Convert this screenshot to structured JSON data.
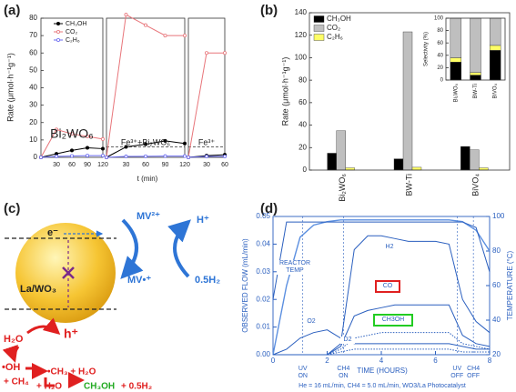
{
  "panel_labels": [
    "(a)",
    "(b)",
    "(c)",
    "(d)"
  ],
  "chart_data": [
    {
      "type": "line",
      "ylabel": "Rate (μmol·h⁻¹g⁻¹)",
      "xlabel": "t (min)",
      "ylim": [
        0,
        80
      ],
      "yticks": [
        0,
        10,
        20,
        30,
        40,
        50,
        60,
        70,
        80
      ],
      "subplots": [
        {
          "label": "Bi₂WO₆",
          "xlim": [
            0,
            120
          ],
          "xticks": [
            30,
            60,
            90,
            120
          ],
          "x": [
            0,
            30,
            60,
            90,
            120
          ],
          "series": [
            {
              "name": "CH₃OH",
              "color": "#000000",
              "values": [
                0,
                2,
                4,
                5.5,
                5
              ]
            },
            {
              "name": "CO₂",
              "color": "#e8757a",
              "values": [
                0,
                16,
                13.5,
                12,
                10.5
              ]
            },
            {
              "name": "C₂H₆",
              "color": "#6a6af0",
              "values": [
                0,
                0.5,
                0.8,
                1,
                1
              ]
            }
          ]
        },
        {
          "label": "Fe³⁺+Bi₂WO₆",
          "xlim": [
            0,
            120
          ],
          "xticks": [
            30,
            60,
            90,
            120
          ],
          "x": [
            0,
            30,
            60,
            90,
            120
          ],
          "reference_line": 6,
          "series": [
            {
              "color": "#000000",
              "values": [
                0,
                6,
                7.5,
                9.5,
                8
              ]
            },
            {
              "color": "#e8757a",
              "values": [
                0,
                82,
                76,
                70,
                70
              ]
            },
            {
              "color": "#6a6af0",
              "values": [
                0,
                0.5,
                0.6,
                0.7,
                0.7
              ]
            }
          ]
        },
        {
          "label": "Fe³⁺",
          "xlim": [
            0,
            60
          ],
          "xticks": [
            30,
            60
          ],
          "x": [
            0,
            30,
            60
          ],
          "reference_line": 6,
          "series": [
            {
              "color": "#000000",
              "values": [
                0,
                1,
                1.5
              ]
            },
            {
              "color": "#e8757a",
              "values": [
                0,
                60,
                60
              ]
            },
            {
              "color": "#6a6af0",
              "values": [
                0,
                0.5,
                0.5
              ]
            }
          ]
        }
      ]
    },
    {
      "type": "bar",
      "ylabel": "Rate (μmol·h⁻¹g⁻¹)",
      "ylim": [
        0,
        140
      ],
      "yticks": [
        0,
        20,
        40,
        60,
        80,
        100,
        120,
        140
      ],
      "legend": "top-left",
      "categories": [
        "Bi₂WO₆",
        "BW-Ti",
        "BiVO₄"
      ],
      "series": [
        {
          "name": "CH₃OH",
          "color": "#000000",
          "values": [
            15,
            10,
            21
          ]
        },
        {
          "name": "CO₂",
          "color": "#bfbfbf",
          "values": [
            35,
            123,
            18
          ]
        },
        {
          "name": "C₂H₆",
          "color": "#ffff66",
          "values": [
            2,
            2.5,
            2
          ]
        }
      ]
    },
    {
      "type": "stacked-bar",
      "ylabel": "Selectivity (%)",
      "ylim": [
        0,
        100
      ],
      "yticks": [
        0,
        20,
        40,
        60,
        80,
        100
      ],
      "categories": [
        "Bi₂WO₆",
        "BW-Ti",
        "BiVO₄"
      ],
      "series": [
        {
          "color": "#000000",
          "values": [
            29,
            8,
            48
          ]
        },
        {
          "color": "#ffff66",
          "values": [
            7,
            4,
            8
          ]
        },
        {
          "color": "#bfbfbf",
          "values": [
            64,
            88,
            44
          ]
        }
      ]
    },
    {
      "type": "line",
      "xlabel": "TIME (HOURS)",
      "ylabel": "OBSERVED FLOW (mL/min)",
      "y2label": "TEMPERATURE (°C)",
      "footnote": "He = 16 mL/min, CH4 = 5.0 mL/min, WO3/La Photocatalyst",
      "xlim": [
        0,
        8
      ],
      "xticks": [
        0,
        2,
        4,
        6,
        8
      ],
      "ylim": [
        0,
        0.05
      ],
      "yticks": [
        {
          "value": 0,
          "label": "0.00"
        },
        {
          "value": 0.01,
          "label": "0.01"
        },
        {
          "value": 0.02,
          "label": "0.02"
        },
        {
          "value": 0.03,
          "label": "0.03"
        },
        {
          "value": 0.04,
          "label": "0.04"
        },
        {
          "value": 0.05,
          "label": "0.05"
        }
      ],
      "y2lim": [
        20,
        100
      ],
      "y2ticks": [
        20,
        40,
        60,
        80,
        100
      ],
      "events": [
        {
          "x": 1.1,
          "label": "UV ON"
        },
        {
          "x": 2.6,
          "label": "CH4 ON"
        },
        {
          "x": 6.8,
          "label": "UV OFF"
        },
        {
          "x": 7.4,
          "label": "CH4 OFF"
        }
      ],
      "x": [
        0,
        0.5,
        1,
        1.5,
        2,
        2.5,
        3,
        3.5,
        4,
        4.5,
        5,
        5.5,
        6,
        6.5,
        7,
        7.5,
        8
      ],
      "series": [
        {
          "name": "REACTOR TEMP",
          "color": "#5b8fe0",
          "axis": "y2",
          "values": [
            20,
            60,
            88,
            95,
            97,
            98,
            98,
            98,
            98,
            98,
            98,
            98,
            98,
            98,
            97,
            92,
            80
          ]
        },
        {
          "color": "#2a5fbf",
          "values": [
            0.02,
            0.048,
            0.048,
            0.048,
            0.048,
            0.048,
            0.048,
            0.048,
            0.048,
            0.048,
            0.048,
            0.048,
            0.048,
            0.048,
            0.048,
            0.046,
            0.03
          ]
        },
        {
          "name": "H2",
          "color": "#2a5fbf",
          "values": [
            0,
            0,
            0,
            0,
            0,
            0.004,
            0.038,
            0.043,
            0.043,
            0.042,
            0.041,
            0.041,
            0.041,
            0.04,
            0.02,
            0.012,
            0.008
          ]
        },
        {
          "name": "CO",
          "color": "#2a5fbf",
          "label_box": "#e02020",
          "values": [
            0,
            0,
            0,
            0,
            0,
            0.003,
            0.014,
            0.016,
            0.017,
            0.018,
            0.018,
            0.018,
            0.018,
            0.018,
            0.007,
            0.004,
            0.003
          ]
        },
        {
          "name": "CH3OH",
          "color": "#2a5fbf",
          "label_box": "#22cc22",
          "style": "dotted",
          "values": [
            0,
            0,
            0,
            0,
            0,
            0.002,
            0.006,
            0.007,
            0.008,
            0.008,
            0.008,
            0.008,
            0.008,
            0.008,
            0.004,
            0.003,
            0.002
          ]
        },
        {
          "name": "O2",
          "color": "#2a5fbf",
          "values": [
            0,
            0.002,
            0.006,
            0.008,
            0.009,
            0.006,
            0.004,
            0.004,
            0.004,
            0.004,
            0.004,
            0.004,
            0.004,
            0.004,
            0.003,
            0.002,
            0.002
          ]
        },
        {
          "name": "D2",
          "color": "#2a5fbf",
          "style": "dotted",
          "values": [
            0,
            0,
            0,
            0,
            0,
            0.001,
            0.002,
            0.002,
            0.002,
            0.002,
            0.002,
            0.002,
            0.002,
            0.002,
            0.001,
            0.001,
            0.001
          ]
        }
      ]
    }
  ],
  "diagram": {
    "conduction_electron": "e⁻",
    "mv_oxidized": "MV²⁺",
    "mv_reduced": "MV•⁺",
    "proton": "H⁺",
    "hydrogen": "0.5H₂",
    "catalyst": "La/WO₃",
    "hole": "h⁺",
    "water": "H₂O",
    "hydroxyl": "•OH",
    "methane": "+ CH₄",
    "methyl_step": "•CH₃ + H₂O",
    "water_add": "+ H₂O",
    "methanol": "CH₃OH",
    "hydrogen_out": "+ 0.5H₂"
  }
}
